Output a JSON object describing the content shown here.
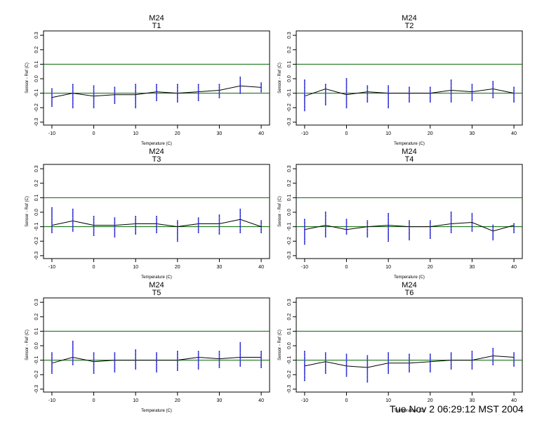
{
  "footer": {
    "timestamp": "Tue Nov  2 06:29:12 MST 2004"
  },
  "colors": {
    "reference_lines": "#006400",
    "points": "#0000cc",
    "mean_line": "#000000",
    "frame": "#000000"
  },
  "chart_data": [
    {
      "type": "scatter",
      "title": "M24",
      "subtitle": "T1",
      "xlabel": "Temperature (C)",
      "ylabel": "Sensor - Ref (C)",
      "xlim": [
        -12,
        42
      ],
      "ylim": [
        -0.32,
        0.33
      ],
      "xticks": [
        -10,
        0,
        10,
        20,
        30,
        40
      ],
      "yticks": [
        -0.3,
        -0.2,
        -0.1,
        0.0,
        0.1,
        0.2,
        0.3
      ],
      "reference_lines": [
        0.1,
        -0.1
      ],
      "x": [
        -10,
        -5,
        0,
        5,
        10,
        15,
        20,
        25,
        30,
        35,
        40
      ],
      "mean": [
        -0.13,
        -0.1,
        -0.12,
        -0.11,
        -0.11,
        -0.09,
        -0.1,
        -0.09,
        -0.08,
        -0.05,
        -0.06
      ],
      "range": [
        [
          -0.19,
          -0.07
        ],
        [
          -0.2,
          -0.04
        ],
        [
          -0.2,
          -0.05
        ],
        [
          -0.17,
          -0.06
        ],
        [
          -0.2,
          -0.04
        ],
        [
          -0.15,
          -0.04
        ],
        [
          -0.16,
          -0.04
        ],
        [
          -0.15,
          -0.04
        ],
        [
          -0.13,
          -0.04
        ],
        [
          -0.1,
          0.01
        ],
        [
          -0.09,
          -0.03
        ]
      ]
    },
    {
      "type": "scatter",
      "title": "M24",
      "subtitle": "T2",
      "xlabel": "Temperature (C)",
      "ylabel": "Sensor - Ref (C)",
      "xlim": [
        -12,
        42
      ],
      "ylim": [
        -0.32,
        0.33
      ],
      "xticks": [
        -10,
        0,
        10,
        20,
        30,
        40
      ],
      "yticks": [
        -0.3,
        -0.2,
        -0.1,
        0.0,
        0.1,
        0.2,
        0.3
      ],
      "reference_lines": [
        0.1,
        -0.1
      ],
      "x": [
        -10,
        -5,
        0,
        5,
        10,
        15,
        20,
        25,
        30,
        35,
        40
      ],
      "mean": [
        -0.12,
        -0.07,
        -0.11,
        -0.09,
        -0.1,
        -0.1,
        -0.1,
        -0.08,
        -0.09,
        -0.07,
        -0.1
      ],
      "range": [
        [
          -0.22,
          -0.01
        ],
        [
          -0.18,
          -0.04
        ],
        [
          -0.2,
          0.0
        ],
        [
          -0.16,
          -0.05
        ],
        [
          -0.2,
          -0.05
        ],
        [
          -0.16,
          -0.06
        ],
        [
          -0.16,
          -0.06
        ],
        [
          -0.16,
          -0.01
        ],
        [
          -0.15,
          -0.04
        ],
        [
          -0.13,
          -0.02
        ],
        [
          -0.16,
          -0.06
        ]
      ]
    },
    {
      "type": "scatter",
      "title": "M24",
      "subtitle": "T3",
      "xlabel": "Temperature (C)",
      "ylabel": "Sensor - Ref (C)",
      "xlim": [
        -12,
        42
      ],
      "ylim": [
        -0.32,
        0.33
      ],
      "xticks": [
        -10,
        0,
        10,
        20,
        30,
        40
      ],
      "yticks": [
        -0.3,
        -0.2,
        -0.1,
        0.0,
        0.1,
        0.2,
        0.3
      ],
      "reference_lines": [
        0.1,
        -0.1
      ],
      "x": [
        -10,
        -5,
        0,
        5,
        10,
        15,
        20,
        25,
        30,
        35,
        40
      ],
      "mean": [
        -0.09,
        -0.06,
        -0.09,
        -0.09,
        -0.08,
        -0.08,
        -0.1,
        -0.08,
        -0.08,
        -0.05,
        -0.1
      ],
      "range": [
        [
          -0.14,
          0.03
        ],
        [
          -0.13,
          0.02
        ],
        [
          -0.16,
          -0.03
        ],
        [
          -0.17,
          -0.04
        ],
        [
          -0.15,
          -0.03
        ],
        [
          -0.14,
          -0.03
        ],
        [
          -0.2,
          -0.06
        ],
        [
          -0.14,
          -0.04
        ],
        [
          -0.15,
          -0.02
        ],
        [
          -0.14,
          0.02
        ],
        [
          -0.14,
          -0.06
        ]
      ]
    },
    {
      "type": "scatter",
      "title": "M24",
      "subtitle": "T4",
      "xlabel": "Temperature (C)",
      "ylabel": "Sensor - Ref (C)",
      "xlim": [
        -12,
        42
      ],
      "ylim": [
        -0.32,
        0.33
      ],
      "xticks": [
        -10,
        0,
        10,
        20,
        30,
        40
      ],
      "yticks": [
        -0.3,
        -0.2,
        -0.1,
        0.0,
        0.1,
        0.2,
        0.3
      ],
      "reference_lines": [
        0.1,
        -0.1
      ],
      "x": [
        -10,
        -5,
        0,
        5,
        10,
        15,
        20,
        25,
        30,
        35,
        40
      ],
      "mean": [
        -0.12,
        -0.09,
        -0.12,
        -0.1,
        -0.09,
        -0.1,
        -0.1,
        -0.08,
        -0.07,
        -0.13,
        -0.09
      ],
      "range": [
        [
          -0.22,
          -0.05
        ],
        [
          -0.17,
          0.0
        ],
        [
          -0.15,
          -0.05
        ],
        [
          -0.17,
          -0.06
        ],
        [
          -0.2,
          -0.01
        ],
        [
          -0.19,
          -0.06
        ],
        [
          -0.18,
          -0.06
        ],
        [
          -0.14,
          0.0
        ],
        [
          -0.13,
          -0.01
        ],
        [
          -0.19,
          -0.09
        ],
        [
          -0.14,
          -0.08
        ]
      ]
    },
    {
      "type": "scatter",
      "title": "M24",
      "subtitle": "T5",
      "xlabel": "Temperature (C)",
      "ylabel": "Sensor - Ref (C)",
      "xlim": [
        -12,
        42
      ],
      "ylim": [
        -0.32,
        0.33
      ],
      "xticks": [
        -10,
        0,
        10,
        20,
        30,
        40
      ],
      "yticks": [
        -0.3,
        -0.2,
        -0.1,
        0.0,
        0.1,
        0.2,
        0.3
      ],
      "reference_lines": [
        0.1,
        -0.1
      ],
      "x": [
        -10,
        -5,
        0,
        5,
        10,
        15,
        20,
        25,
        30,
        35,
        40
      ],
      "mean": [
        -0.12,
        -0.08,
        -0.11,
        -0.1,
        -0.1,
        -0.1,
        -0.1,
        -0.08,
        -0.09,
        -0.08,
        -0.08
      ],
      "range": [
        [
          -0.19,
          -0.05
        ],
        [
          -0.13,
          0.03
        ],
        [
          -0.19,
          -0.05
        ],
        [
          -0.18,
          -0.05
        ],
        [
          -0.16,
          -0.03
        ],
        [
          -0.18,
          -0.05
        ],
        [
          -0.17,
          -0.04
        ],
        [
          -0.16,
          -0.04
        ],
        [
          -0.15,
          -0.04
        ],
        [
          -0.14,
          0.02
        ],
        [
          -0.15,
          -0.04
        ]
      ]
    },
    {
      "type": "scatter",
      "title": "M24",
      "subtitle": "T6",
      "xlabel": "Temperature (C)",
      "ylabel": "Sensor - Ref (C)",
      "xlim": [
        -12,
        42
      ],
      "ylim": [
        -0.32,
        0.33
      ],
      "xticks": [
        -10,
        0,
        10,
        20,
        30,
        40
      ],
      "yticks": [
        -0.3,
        -0.2,
        -0.1,
        0.0,
        0.1,
        0.2,
        0.3
      ],
      "reference_lines": [
        0.1,
        -0.1
      ],
      "x": [
        -10,
        -5,
        0,
        5,
        10,
        15,
        20,
        25,
        30,
        35,
        40
      ],
      "mean": [
        -0.14,
        -0.11,
        -0.14,
        -0.15,
        -0.12,
        -0.12,
        -0.11,
        -0.1,
        -0.1,
        -0.07,
        -0.08
      ],
      "range": [
        [
          -0.24,
          -0.04
        ],
        [
          -0.19,
          -0.05
        ],
        [
          -0.21,
          -0.06
        ],
        [
          -0.25,
          -0.07
        ],
        [
          -0.19,
          -0.05
        ],
        [
          -0.18,
          -0.06
        ],
        [
          -0.18,
          -0.06
        ],
        [
          -0.16,
          -0.05
        ],
        [
          -0.16,
          -0.04
        ],
        [
          -0.13,
          -0.02
        ],
        [
          -0.14,
          -0.05
        ]
      ]
    }
  ]
}
